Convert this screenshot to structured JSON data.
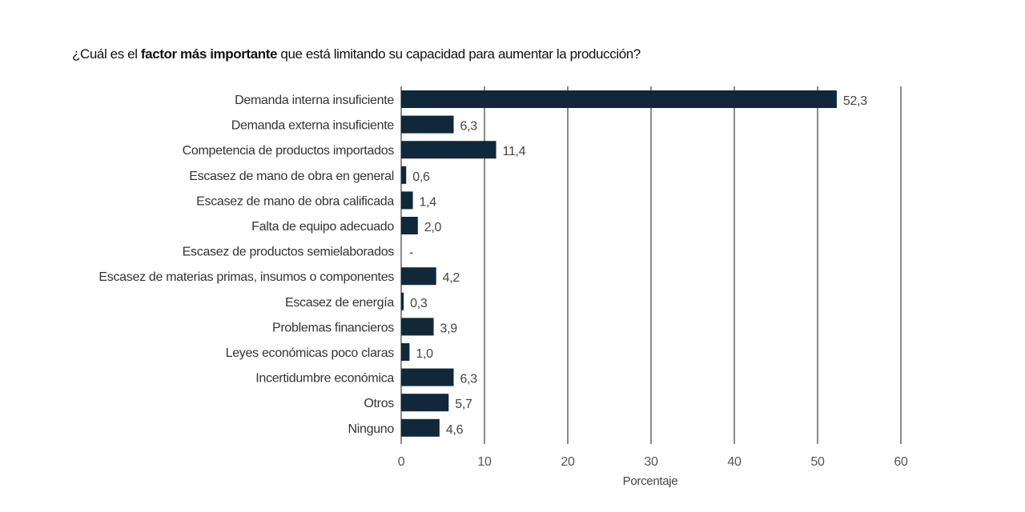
{
  "title": {
    "before": "¿Cuál es el ",
    "bold": "factor más importante",
    "after": " que está limitando su capacidad para aumentar la producción?"
  },
  "chart_data": {
    "type": "bar",
    "orientation": "horizontal",
    "title": "¿Cuál es el factor más importante que está limitando su capacidad para aumentar la producción?",
    "xlabel": "Porcentaje",
    "ylabel": "",
    "xlim": [
      0,
      60
    ],
    "xticks": [
      0,
      10,
      20,
      30,
      40,
      50,
      60
    ],
    "grid": true,
    "bar_color": "#10283a",
    "categories": [
      "Demanda interna insuficiente",
      "Demanda externa insuficiente",
      "Competencia de productos importados",
      "Escasez de mano de obra en general",
      "Escasez de mano de obra calificada",
      "Falta de equipo adecuado",
      "Escasez de productos semielaborados",
      "Escasez de materias primas, insumos o componentes",
      "Escasez de energía",
      "Problemas financieros",
      "Leyes económicas poco claras",
      "Incertidumbre económica",
      "Otros",
      "Ninguno"
    ],
    "values": [
      52.3,
      6.3,
      11.4,
      0.6,
      1.4,
      2.0,
      null,
      4.2,
      0.3,
      3.9,
      1.0,
      6.3,
      5.7,
      4.6
    ],
    "data_labels": [
      "52,3",
      "6,3",
      "11,4",
      "0,6",
      "1,4",
      "2,0",
      "-",
      "4,2",
      "0,3",
      "3,9",
      "1,0",
      "6,3",
      "5,7",
      "4,6"
    ]
  }
}
